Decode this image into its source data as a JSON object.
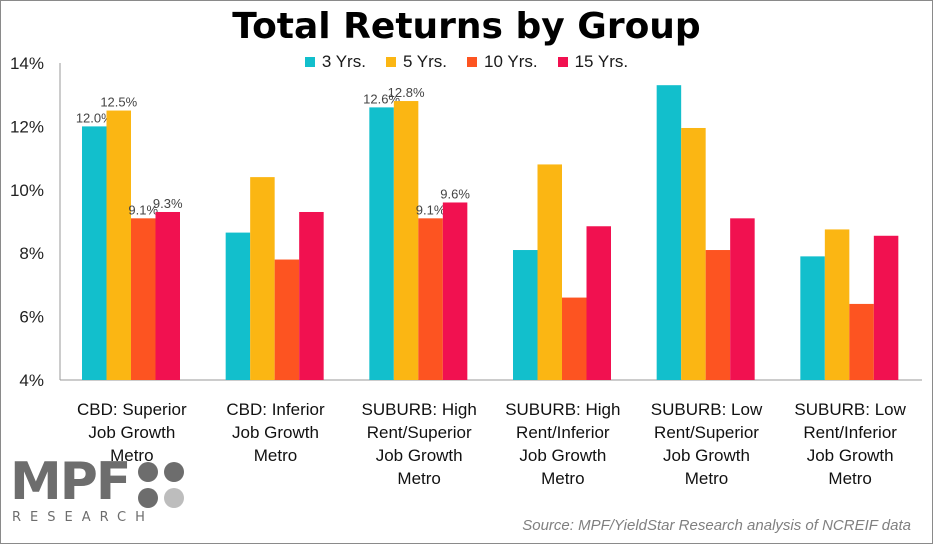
{
  "chart_data": {
    "type": "bar",
    "title": "Total Returns by Group",
    "categories": [
      [
        "CBD: Superior",
        "Job Growth",
        "Metro"
      ],
      [
        "CBD: Inferior",
        "Job Growth",
        "Metro"
      ],
      [
        "SUBURB: High",
        "Rent/Superior",
        "Job Growth",
        "Metro"
      ],
      [
        "SUBURB: High",
        "Rent/Inferior",
        "Job Growth",
        "Metro"
      ],
      [
        "SUBURB: Low",
        "Rent/Superior",
        "Job Growth",
        "Metro"
      ],
      [
        "SUBURB: Low",
        "Rent/Inferior",
        "Job Growth",
        "Metro"
      ]
    ],
    "series": [
      {
        "name": "3 Yrs.",
        "color": "#12BFCC",
        "values": [
          12.0,
          8.65,
          12.6,
          8.1,
          13.3,
          7.9
        ]
      },
      {
        "name": "5 Yrs.",
        "color": "#FBB613",
        "values": [
          12.5,
          10.4,
          12.8,
          10.8,
          11.95,
          8.75
        ]
      },
      {
        "name": "10 Yrs.",
        "color": "#FD5421",
        "values": [
          9.1,
          7.8,
          9.1,
          6.6,
          8.1,
          6.4
        ]
      },
      {
        "name": "15 Yrs.",
        "color": "#F11150",
        "values": [
          9.3,
          9.3,
          9.6,
          8.85,
          9.1,
          8.55
        ]
      }
    ],
    "data_labels": [
      [
        "12.0%",
        "12.5%",
        "9.1%",
        "9.3%"
      ],
      null,
      [
        "12.6%",
        "12.8%",
        "9.1%",
        "9.6%"
      ],
      null,
      null,
      null
    ],
    "ylim": [
      4,
      14
    ],
    "yticks": [
      4,
      6,
      8,
      10,
      12,
      14
    ],
    "ytick_labels": [
      "4%",
      "6%",
      "8%",
      "10%",
      "12%",
      "14%"
    ],
    "legend_position": "top-center",
    "grid": false
  },
  "source_text": "Source:  MPF/YieldStar Research analysis of NCREIF data",
  "logo": {
    "main": "MPF",
    "sub": "RESEARCH"
  }
}
